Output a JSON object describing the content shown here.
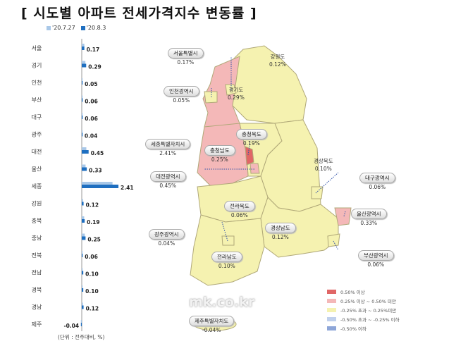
{
  "title": "[ 시도별 아파트 전세가격지수 변동률 ]",
  "unit_note": "(단위 : 전주대비, %)",
  "watermark": "mk.co.kr",
  "chart_data": {
    "type": "bar",
    "orientation": "horizontal",
    "categories": [
      "서울",
      "경기",
      "인천",
      "부산",
      "대구",
      "광주",
      "대전",
      "울산",
      "세종",
      "강원",
      "충북",
      "충남",
      "전북",
      "전남",
      "경북",
      "경남",
      "제주"
    ],
    "series": [
      {
        "name": "'20.7.27",
        "color": "#a9c8e8",
        "values": [
          0.17,
          0.24,
          0.05,
          0.06,
          0.06,
          0.04,
          0.3,
          0.25,
          2.02,
          0.09,
          0.16,
          0.2,
          0.05,
          0.06,
          0.06,
          0.08,
          -0.03
        ]
      },
      {
        "name": "'20.8.3",
        "color": "#1f6fc0",
        "values": [
          0.17,
          0.29,
          0.05,
          0.06,
          0.06,
          0.04,
          0.45,
          0.33,
          2.41,
          0.12,
          0.19,
          0.25,
          0.06,
          0.1,
          0.1,
          0.12,
          -0.04
        ]
      }
    ],
    "data_labels": [
      "0.17",
      "0.29",
      "0.05",
      "0.06",
      "0.06",
      "0.04",
      "0.45",
      "0.33",
      "2.41",
      "0.12",
      "0.19",
      "0.25",
      "0.06",
      "0.10",
      "0.10",
      "0.12",
      "-0.04"
    ],
    "legend": "top"
  },
  "map": {
    "regions": [
      {
        "name": "서울특별시",
        "value": "0.17%"
      },
      {
        "name": "인천광역시",
        "value": "0.05%"
      },
      {
        "name": "경기도",
        "value": "0.29%"
      },
      {
        "name": "강원도",
        "value": "0.12%"
      },
      {
        "name": "세종특별자치시",
        "value": "2.41%"
      },
      {
        "name": "충청북도",
        "value": "0.19%"
      },
      {
        "name": "충청남도",
        "value": "0.25%"
      },
      {
        "name": "대전광역시",
        "value": "0.45%"
      },
      {
        "name": "경상북도",
        "value": "0.10%"
      },
      {
        "name": "대구광역시",
        "value": "0.06%"
      },
      {
        "name": "전라북도",
        "value": "0.06%"
      },
      {
        "name": "울산광역시",
        "value": "0.33%"
      },
      {
        "name": "광주광역시",
        "value": "0.04%"
      },
      {
        "name": "경상남도",
        "value": "0.12%"
      },
      {
        "name": "부산광역시",
        "value": "0.06%"
      },
      {
        "name": "전라남도",
        "value": "0.10%"
      },
      {
        "name": "제주특별자치도",
        "value": "-0.04%"
      }
    ],
    "legend": [
      {
        "label": "0.50% 이상",
        "color": "#e06666"
      },
      {
        "label": "0.25% 이상 ~ 0.50% 미만",
        "color": "#f4b8b8"
      },
      {
        "label": "-0.25% 초과 ~ 0.25%미만",
        "color": "#f5f2b0"
      },
      {
        "label": "-0.50% 초과 ~ -0.25% 이하",
        "color": "#c0d0ec"
      },
      {
        "label": "-0.50% 이하",
        "color": "#8ea6d8"
      }
    ]
  }
}
